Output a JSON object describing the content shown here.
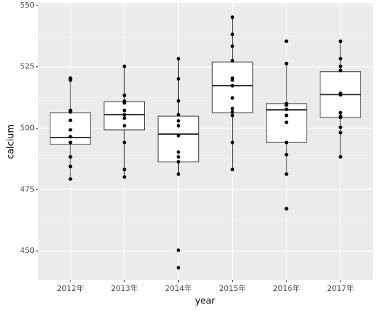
{
  "chart_data": {
    "type": "box",
    "x_label": "year",
    "y_label": "calcium",
    "categories": [
      "2012年",
      "2013年",
      "2014年",
      "2015年",
      "2016年",
      "2017年"
    ],
    "ylim": [
      438.2,
      550.8
    ],
    "yticks": [
      450,
      475,
      500,
      525,
      550
    ],
    "grid": true,
    "boxes": [
      {
        "min": 479.3,
        "q1": 493.4,
        "median": 496.2,
        "q3": 506.3,
        "max": 520.4,
        "points": [
          520.4,
          519.6,
          507.2,
          506.6,
          503.2,
          499.3,
          496.5,
          494.2,
          488.3,
          484.4,
          479.3
        ]
      },
      {
        "min": 480.1,
        "q1": 499.3,
        "median": 505.5,
        "q3": 510.8,
        "max": 525.2,
        "points": [
          525.2,
          513.4,
          511.0,
          510.3,
          507.2,
          505.5,
          504.1,
          501.0,
          494.2,
          483.2,
          480.1
        ]
      },
      {
        "min": 481.3,
        "q1": 486.3,
        "median": 497.6,
        "q3": 504.9,
        "max": 528.3,
        "points": [
          528.3,
          520.1,
          511.1,
          505.5,
          503.0,
          501.0,
          497.0,
          490.3,
          488.3,
          486.3,
          481.3,
          450.3,
          443.2
        ]
      },
      {
        "min": 483.2,
        "q1": 506.3,
        "median": 517.3,
        "q3": 526.9,
        "max": 545.2,
        "points": [
          545.2,
          538.2,
          533.4,
          527.5,
          520.4,
          519.6,
          517.3,
          512.3,
          508.0,
          506.6,
          505.2,
          494.2,
          483.2
        ]
      },
      {
        "min": 481.3,
        "q1": 494.2,
        "median": 507.5,
        "q3": 510.0,
        "max": 526.3,
        "points": [
          535.4,
          526.3,
          510.0,
          509.4,
          507.7,
          505.2,
          502.4,
          494.2,
          489.2,
          481.3,
          467.2
        ]
      },
      {
        "min": 488.3,
        "q1": 504.4,
        "median": 513.7,
        "q3": 523.0,
        "max": 535.4,
        "points": [
          535.4,
          528.3,
          525.2,
          523.5,
          514.2,
          513.6,
          506.3,
          504.9,
          504.4,
          500.4,
          498.2,
          488.3
        ]
      }
    ]
  }
}
